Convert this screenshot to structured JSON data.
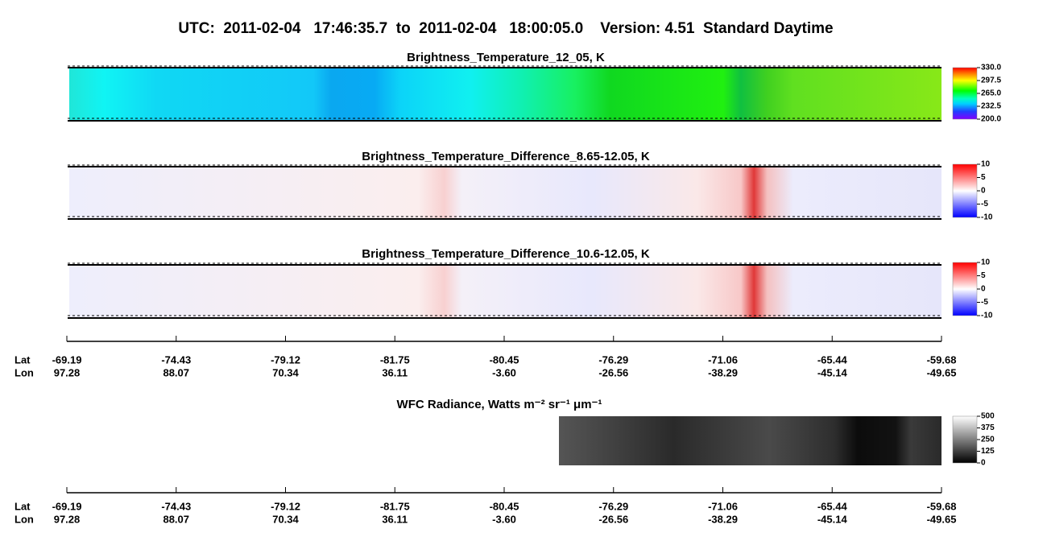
{
  "title": "UTC:  2011-02-04   17:46:35.7  to  2011-02-04   18:00:05.0    Version: 4.51  Standard Daytime",
  "chart_data": [
    {
      "type": "heatmap",
      "title": "Brightness_Temperature_12_05, K",
      "colormap": "rainbow",
      "zlim": [
        200,
        330
      ],
      "zticks": [
        {
          "value": 330,
          "label": "330.0"
        },
        {
          "value": 297.5,
          "label": "297.5"
        },
        {
          "value": 265,
          "label": "265.0"
        },
        {
          "value": 232.5,
          "label": "232.5"
        },
        {
          "value": 200,
          "label": "200.0"
        }
      ]
    },
    {
      "type": "heatmap",
      "title": "Brightness_Temperature_Difference_8.65-12.05, K",
      "colormap": "bwr",
      "zlim": [
        -10,
        10
      ],
      "zticks": [
        10,
        5,
        0,
        -5,
        -10
      ]
    },
    {
      "type": "heatmap",
      "title": "Brightness_Temperature_Difference_10.6-12.05, K",
      "colormap": "bwr",
      "zlim": [
        -10,
        10
      ],
      "zticks": [
        10,
        5,
        0,
        -5,
        -10
      ]
    },
    {
      "type": "heatmap",
      "title": "WFC Radiance, Watts m⁻² sr⁻¹ μm⁻¹",
      "colormap": "gray",
      "zlim": [
        0,
        500
      ],
      "zticks": [
        500,
        375,
        250,
        125,
        0
      ]
    }
  ],
  "axes": [
    {
      "row_labels": [
        "Lat",
        "Lon"
      ],
      "lat": [
        -69.19,
        -74.43,
        -79.12,
        -81.75,
        -80.45,
        -76.29,
        -71.06,
        -65.44,
        -59.68
      ],
      "lon": [
        97.28,
        88.07,
        70.34,
        36.11,
        {
          "value": -3.6,
          "label": "-3.60"
        },
        -26.56,
        -38.29,
        -45.14,
        -49.65
      ]
    },
    {
      "row_labels": [
        "Lat",
        "Lon"
      ],
      "lat": [
        -69.19,
        -74.43,
        -79.12,
        -81.75,
        -80.45,
        -76.29,
        -71.06,
        -65.44,
        -59.68
      ],
      "lon": [
        97.28,
        88.07,
        70.34,
        36.11,
        {
          "value": -3.6,
          "label": "-3.60"
        },
        -26.56,
        -38.29,
        -45.14,
        -49.65
      ]
    }
  ]
}
